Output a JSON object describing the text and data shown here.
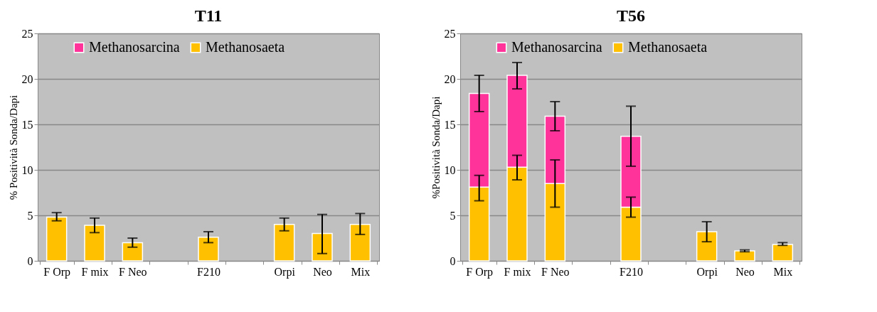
{
  "chart_data": [
    {
      "type": "bar",
      "title": "T11",
      "ylabel": "% Positività Sonda/Dapi",
      "stacked": true,
      "legend": "top",
      "grid": "y",
      "categories": [
        "F Orp",
        "F mix",
        "F Neo",
        null,
        "F210",
        null,
        "Orpi",
        "Neo",
        "Mix"
      ],
      "ylim": [
        0,
        25
      ],
      "yticks": [
        0,
        5,
        10,
        15,
        20,
        25
      ],
      "series": [
        {
          "name": "Methanosaeta",
          "color": "#ffc000",
          "values": [
            4.8,
            3.9,
            2.0,
            null,
            2.6,
            null,
            4.0,
            3.0,
            4.0
          ],
          "errors": [
            [
              4.4,
              5.3
            ],
            [
              3.1,
              4.7
            ],
            [
              1.5,
              2.5
            ],
            null,
            [
              2.0,
              3.2
            ],
            null,
            [
              3.3,
              4.7
            ],
            [
              0.8,
              5.1
            ],
            [
              2.9,
              5.2
            ]
          ]
        },
        {
          "name": "Methanosarcina",
          "color": "#ff3399",
          "values": [
            null,
            null,
            null,
            null,
            null,
            null,
            null,
            null,
            null
          ]
        }
      ]
    },
    {
      "type": "bar",
      "title": "T56",
      "ylabel": "%Positività  Sonda/Dapi",
      "stacked": true,
      "legend": "top",
      "grid": "y",
      "categories": [
        "F Orp",
        "F mix",
        "F Neo",
        null,
        "F210",
        null,
        "Orpi",
        "Neo",
        "Mix"
      ],
      "ylim": [
        0,
        25
      ],
      "yticks": [
        0,
        5,
        10,
        15,
        20,
        25
      ],
      "series": [
        {
          "name": "Methanosaeta",
          "color": "#ffc000",
          "values": [
            8.1,
            10.3,
            8.5,
            null,
            5.9,
            null,
            3.2,
            1.1,
            1.8
          ],
          "errors": [
            [
              6.6,
              9.4
            ],
            [
              8.9,
              11.6
            ],
            [
              5.9,
              11.1
            ],
            null,
            [
              4.8,
              7.0
            ],
            null,
            [
              2.1,
              4.3
            ],
            [
              1.0,
              1.2
            ],
            [
              1.7,
              2.0
            ]
          ]
        },
        {
          "name": "Methanosarcina",
          "color": "#ff3399",
          "values": [
            10.3,
            10.1,
            7.4,
            null,
            7.8,
            null,
            null,
            null,
            null
          ],
          "errors": [
            [
              16.4,
              20.4
            ],
            [
              18.9,
              21.8
            ],
            [
              14.3,
              17.5
            ],
            null,
            [
              10.4,
              17.0
            ],
            null,
            null,
            null,
            null
          ]
        }
      ]
    }
  ]
}
